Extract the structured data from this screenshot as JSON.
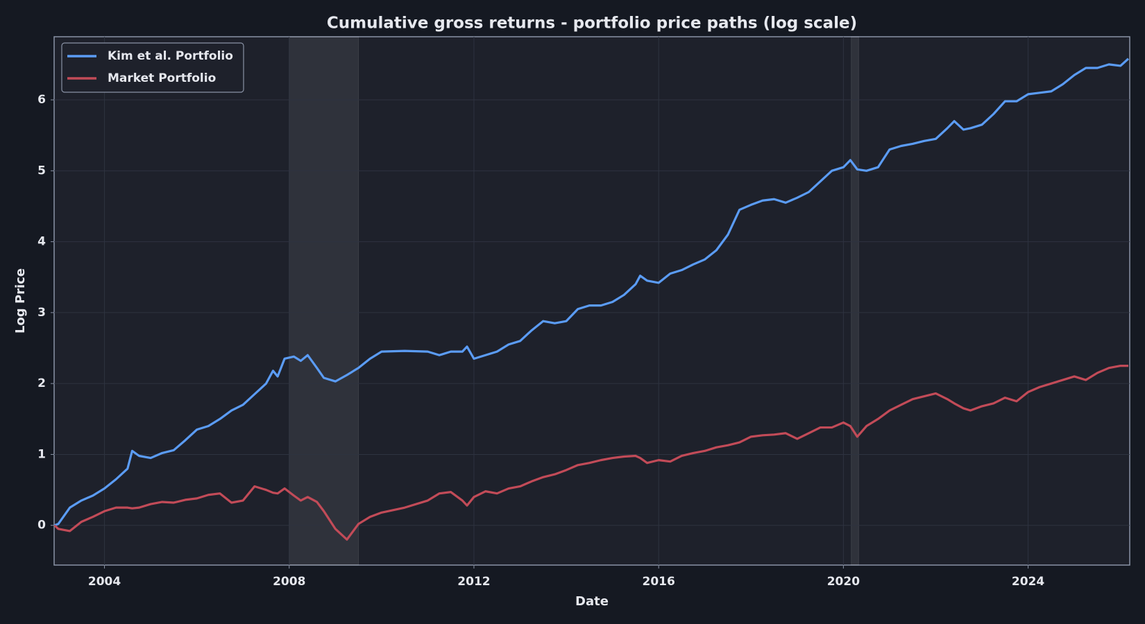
{
  "chart_data": {
    "type": "line",
    "title": "Cumulative gross returns - portfolio price paths (log scale)",
    "x_label": "Date",
    "y_label": "Log Price",
    "x": [
      2002.92,
      2003,
      2003.25,
      2003.5,
      2003.75,
      2004,
      2004.25,
      2004.5,
      2004.6,
      2004.75,
      2005,
      2005.25,
      2005.5,
      2005.75,
      2006,
      2006.25,
      2006.5,
      2006.75,
      2007,
      2007.25,
      2007.5,
      2007.65,
      2007.75,
      2007.9,
      2008.1,
      2008.25,
      2008.4,
      2008.6,
      2008.75,
      2009,
      2009.25,
      2009.5,
      2009.75,
      2010,
      2010.5,
      2011,
      2011.25,
      2011.5,
      2011.75,
      2011.85,
      2012,
      2012.25,
      2012.5,
      2012.75,
      2013,
      2013.25,
      2013.5,
      2013.75,
      2014,
      2014.25,
      2014.5,
      2014.75,
      2015,
      2015.25,
      2015.5,
      2015.6,
      2015.75,
      2016,
      2016.25,
      2016.5,
      2016.75,
      2017,
      2017.25,
      2017.5,
      2017.75,
      2018,
      2018.25,
      2018.5,
      2018.75,
      2019,
      2019.25,
      2019.5,
      2019.75,
      2020,
      2020.15,
      2020.3,
      2020.5,
      2020.75,
      2021,
      2021.25,
      2021.5,
      2021.75,
      2022,
      2022.25,
      2022.4,
      2022.6,
      2022.75,
      2023,
      2023.25,
      2023.5,
      2023.75,
      2024,
      2024.25,
      2024.5,
      2024.75,
      2025,
      2025.25,
      2025.5,
      2025.75,
      2026,
      2026.17
    ],
    "series": [
      {
        "name": "Kim et al. Portfolio",
        "color": "#5b9cf5",
        "values": [
          0,
          0.02,
          0.25,
          0.35,
          0.42,
          0.52,
          0.65,
          0.8,
          1.05,
          0.98,
          0.95,
          1.02,
          1.06,
          1.2,
          1.35,
          1.4,
          1.5,
          1.62,
          1.7,
          1.85,
          2.0,
          2.18,
          2.1,
          2.35,
          2.38,
          2.32,
          2.4,
          2.22,
          2.08,
          2.03,
          2.12,
          2.22,
          2.35,
          2.45,
          2.46,
          2.45,
          2.4,
          2.45,
          2.45,
          2.52,
          2.35,
          2.4,
          2.45,
          2.55,
          2.6,
          2.75,
          2.88,
          2.85,
          2.88,
          3.05,
          3.1,
          3.1,
          3.15,
          3.25,
          3.4,
          3.52,
          3.45,
          3.42,
          3.55,
          3.6,
          3.68,
          3.75,
          3.88,
          4.1,
          4.45,
          4.52,
          4.58,
          4.6,
          4.55,
          4.62,
          4.7,
          4.85,
          5.0,
          5.05,
          5.15,
          5.02,
          5.0,
          5.05,
          5.3,
          5.35,
          5.38,
          5.42,
          5.45,
          5.6,
          5.7,
          5.58,
          5.6,
          5.65,
          5.8,
          5.98,
          5.98,
          6.08,
          6.1,
          6.12,
          6.22,
          6.35,
          6.45,
          6.45,
          6.5,
          6.48,
          6.58
        ]
      },
      {
        "name": "Market Portfolio",
        "color": "#c24b58",
        "values": [
          0,
          -0.05,
          -0.08,
          0.05,
          0.12,
          0.2,
          0.25,
          0.25,
          0.24,
          0.25,
          0.3,
          0.33,
          0.32,
          0.36,
          0.38,
          0.43,
          0.45,
          0.32,
          0.35,
          0.55,
          0.5,
          0.46,
          0.45,
          0.52,
          0.42,
          0.35,
          0.4,
          0.33,
          0.2,
          -0.05,
          -0.2,
          0.02,
          0.12,
          0.18,
          0.25,
          0.35,
          0.45,
          0.47,
          0.35,
          0.28,
          0.4,
          0.48,
          0.45,
          0.52,
          0.55,
          0.62,
          0.68,
          0.72,
          0.78,
          0.85,
          0.88,
          0.92,
          0.95,
          0.97,
          0.98,
          0.95,
          0.88,
          0.92,
          0.9,
          0.98,
          1.02,
          1.05,
          1.1,
          1.13,
          1.17,
          1.25,
          1.27,
          1.28,
          1.3,
          1.22,
          1.3,
          1.38,
          1.38,
          1.45,
          1.4,
          1.25,
          1.4,
          1.5,
          1.62,
          1.7,
          1.78,
          1.82,
          1.86,
          1.78,
          1.72,
          1.65,
          1.62,
          1.68,
          1.72,
          1.8,
          1.75,
          1.88,
          1.95,
          2.0,
          2.05,
          2.1,
          2.05,
          2.15,
          2.22,
          2.25,
          2.25
        ]
      }
    ],
    "shaded_regions": [
      [
        2008.0,
        2009.5
      ],
      [
        2020.17,
        2020.33
      ]
    ],
    "xlim": [
      2002.91,
      2026.2
    ],
    "xticks": [
      2004,
      2008,
      2012,
      2016,
      2020,
      2024
    ],
    "ylim": [
      -0.56,
      6.89
    ],
    "yticks": [
      0,
      1,
      2,
      3,
      4,
      5,
      6
    ],
    "grid": true,
    "legend": "upper left"
  }
}
